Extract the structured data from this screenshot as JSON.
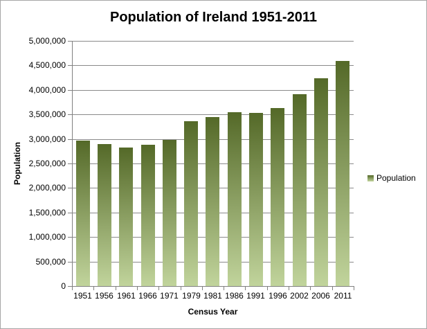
{
  "chart_data": {
    "type": "bar",
    "title": "Population of Ireland 1951-2011",
    "xlabel": "Census Year",
    "ylabel": "Population",
    "categories": [
      "1951",
      "1956",
      "1961",
      "1966",
      "1971",
      "1979",
      "1981",
      "1986",
      "1991",
      "1996",
      "2002",
      "2006",
      "2011"
    ],
    "series": [
      {
        "name": "Population",
        "values": [
          2960593,
          2898264,
          2818341,
          2884002,
          2978248,
          3368217,
          3443405,
          3540643,
          3525719,
          3626087,
          3917203,
          4239848,
          4588252
        ]
      }
    ],
    "ylim": [
      0,
      5000000
    ],
    "ytick_step": 500000,
    "ytick_labels": [
      "0",
      "500,000",
      "1,000,000",
      "1,500,000",
      "2,000,000",
      "2,500,000",
      "3,000,000",
      "3,500,000",
      "4,000,000",
      "4,500,000",
      "5,000,000"
    ],
    "grid": "horizontal",
    "legend_position": "right",
    "legend_label": "Population",
    "colors": {
      "bar_gradient_top": "#546928",
      "bar_gradient_bottom": "#c1d49c",
      "gridline": "#898989",
      "axis": "#808080",
      "text": "#000000",
      "frame_border": "#a6a6a6",
      "background": "#ffffff"
    }
  }
}
